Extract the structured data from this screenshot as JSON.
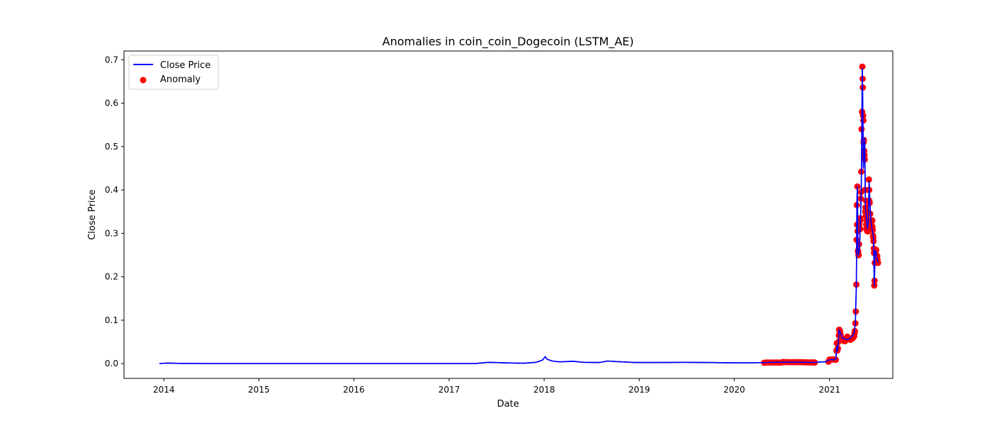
{
  "chart_data": {
    "type": "line",
    "title": "Anomalies in coin_coin_Dogecoin (LSTM_AE)",
    "xlabel": "Date",
    "ylabel": "Close Price",
    "xlim": [
      "2013-08-01",
      "2021-09-01"
    ],
    "ylim": [
      -0.034,
      0.72
    ],
    "x_ticks": [
      "2014",
      "2015",
      "2016",
      "2017",
      "2018",
      "2019",
      "2020",
      "2021"
    ],
    "y_ticks": [
      "0.0",
      "0.1",
      "0.2",
      "0.3",
      "0.4",
      "0.5",
      "0.6",
      "0.7"
    ],
    "legend": {
      "placement": "upper-left",
      "entries": [
        "Close Price",
        "Anomaly"
      ]
    },
    "grid": false,
    "colors": {
      "line": "#0000ff",
      "anomaly": "#ff0000"
    },
    "series": [
      {
        "name": "Close Price",
        "style": "line",
        "points": [
          [
            "2013-12-15",
            0.0003
          ],
          [
            "2014-01-15",
            0.0012
          ],
          [
            "2014-03-01",
            0.0006
          ],
          [
            "2014-06-01",
            0.0003
          ],
          [
            "2015-01-01",
            0.0002
          ],
          [
            "2016-01-01",
            0.0002
          ],
          [
            "2017-01-01",
            0.0002
          ],
          [
            "2017-04-15",
            0.0005
          ],
          [
            "2017-06-01",
            0.003
          ],
          [
            "2017-08-15",
            0.0015
          ],
          [
            "2017-10-15",
            0.001
          ],
          [
            "2017-12-01",
            0.003
          ],
          [
            "2017-12-25",
            0.008
          ],
          [
            "2018-01-05",
            0.016
          ],
          [
            "2018-01-12",
            0.01
          ],
          [
            "2018-02-01",
            0.006
          ],
          [
            "2018-03-01",
            0.004
          ],
          [
            "2018-04-20",
            0.0055
          ],
          [
            "2018-06-01",
            0.003
          ],
          [
            "2018-08-01",
            0.0025
          ],
          [
            "2018-09-01",
            0.006
          ],
          [
            "2018-10-15",
            0.0045
          ],
          [
            "2018-12-15",
            0.0025
          ],
          [
            "2019-04-01",
            0.0025
          ],
          [
            "2019-06-20",
            0.003
          ],
          [
            "2019-09-01",
            0.0025
          ],
          [
            "2019-12-01",
            0.002
          ],
          [
            "2020-03-10",
            0.0019
          ],
          [
            "2020-05-01",
            0.0025
          ],
          [
            "2020-07-10",
            0.0035
          ],
          [
            "2020-09-01",
            0.0033
          ],
          [
            "2020-11-01",
            0.0027
          ],
          [
            "2020-12-20",
            0.0045
          ],
          [
            "2021-01-01",
            0.0093
          ],
          [
            "2021-01-25",
            0.009
          ],
          [
            "2021-01-29",
            0.04
          ],
          [
            "2021-02-01",
            0.03
          ],
          [
            "2021-02-07",
            0.078
          ],
          [
            "2021-02-20",
            0.058
          ],
          [
            "2021-03-10",
            0.055
          ],
          [
            "2021-03-25",
            0.06
          ],
          [
            "2021-04-05",
            0.07
          ],
          [
            "2021-04-10",
            0.093
          ],
          [
            "2021-04-14",
            0.182
          ],
          [
            "2021-04-16",
            0.365
          ],
          [
            "2021-04-18",
            0.408
          ],
          [
            "2021-04-20",
            0.26
          ],
          [
            "2021-04-23",
            0.25
          ],
          [
            "2021-04-26",
            0.27
          ],
          [
            "2021-04-30",
            0.33
          ],
          [
            "2021-05-03",
            0.395
          ],
          [
            "2021-05-05",
            0.54
          ],
          [
            "2021-05-07",
            0.68
          ],
          [
            "2021-05-09",
            0.58
          ],
          [
            "2021-05-11",
            0.45
          ],
          [
            "2021-05-13",
            0.48
          ],
          [
            "2021-05-16",
            0.52
          ],
          [
            "2021-05-19",
            0.36
          ],
          [
            "2021-05-23",
            0.33
          ],
          [
            "2021-05-26",
            0.31
          ],
          [
            "2021-05-30",
            0.33
          ],
          [
            "2021-06-02",
            0.42
          ],
          [
            "2021-06-05",
            0.37
          ],
          [
            "2021-06-09",
            0.33
          ],
          [
            "2021-06-13",
            0.31
          ],
          [
            "2021-06-16",
            0.3
          ],
          [
            "2021-06-19",
            0.29
          ],
          [
            "2021-06-22",
            0.18
          ],
          [
            "2021-06-25",
            0.26
          ],
          [
            "2021-06-28",
            0.26
          ],
          [
            "2021-07-01",
            0.245
          ],
          [
            "2021-07-04",
            0.24
          ],
          [
            "2021-07-06",
            0.232
          ]
        ]
      },
      {
        "name": "Anomaly",
        "style": "scatter",
        "points": [
          [
            "2020-04-25",
            0.002
          ],
          [
            "2020-05-05",
            0.0025
          ],
          [
            "2020-05-15",
            0.0025
          ],
          [
            "2020-05-25",
            0.0026
          ],
          [
            "2020-06-05",
            0.0025
          ],
          [
            "2020-06-15",
            0.0025
          ],
          [
            "2020-06-25",
            0.0024
          ],
          [
            "2020-07-05",
            0.0035
          ],
          [
            "2020-07-10",
            0.0035
          ],
          [
            "2020-07-20",
            0.0035
          ],
          [
            "2020-07-30",
            0.0033
          ],
          [
            "2020-08-10",
            0.0034
          ],
          [
            "2020-08-20",
            0.0034
          ],
          [
            "2020-08-30",
            0.0035
          ],
          [
            "2020-09-10",
            0.0033
          ],
          [
            "2020-09-20",
            0.0032
          ],
          [
            "2020-09-30",
            0.0031
          ],
          [
            "2020-10-10",
            0.0028
          ],
          [
            "2020-10-20",
            0.0027
          ],
          [
            "2020-10-28",
            0.0027
          ],
          [
            "2020-11-03",
            0.0026
          ],
          [
            "2020-11-05",
            0.0025
          ],
          [
            "2020-12-28",
            0.0045
          ],
          [
            "2021-01-01",
            0.0093
          ],
          [
            "2021-01-05",
            0.009
          ],
          [
            "2021-01-10",
            0.0095
          ],
          [
            "2021-01-15",
            0.0095
          ],
          [
            "2021-01-20",
            0.0093
          ],
          [
            "2021-01-25",
            0.009
          ],
          [
            "2021-01-28",
            0.03
          ],
          [
            "2021-01-29",
            0.047
          ],
          [
            "2021-01-31",
            0.03
          ],
          [
            "2021-02-02",
            0.035
          ],
          [
            "2021-02-04",
            0.05
          ],
          [
            "2021-02-06",
            0.065
          ],
          [
            "2021-02-07",
            0.078
          ],
          [
            "2021-02-08",
            0.078
          ],
          [
            "2021-02-10",
            0.075
          ],
          [
            "2021-02-12",
            0.068
          ],
          [
            "2021-02-15",
            0.06
          ],
          [
            "2021-02-18",
            0.055
          ],
          [
            "2021-02-22",
            0.055
          ],
          [
            "2021-02-26",
            0.052
          ],
          [
            "2021-03-02",
            0.052
          ],
          [
            "2021-03-06",
            0.058
          ],
          [
            "2021-03-10",
            0.062
          ],
          [
            "2021-03-14",
            0.06
          ],
          [
            "2021-03-18",
            0.058
          ],
          [
            "2021-03-22",
            0.055
          ],
          [
            "2021-03-26",
            0.057
          ],
          [
            "2021-03-30",
            0.058
          ],
          [
            "2021-04-02",
            0.06
          ],
          [
            "2021-04-05",
            0.063
          ],
          [
            "2021-04-07",
            0.07
          ],
          [
            "2021-04-08",
            0.075
          ],
          [
            "2021-04-10",
            0.093
          ],
          [
            "2021-04-12",
            0.12
          ],
          [
            "2021-04-14",
            0.182
          ],
          [
            "2021-04-15",
            0.285
          ],
          [
            "2021-04-16",
            0.365
          ],
          [
            "2021-04-17",
            0.32
          ],
          [
            "2021-04-18",
            0.408
          ],
          [
            "2021-04-19",
            0.305
          ],
          [
            "2021-04-20",
            0.26
          ],
          [
            "2021-04-21",
            0.258
          ],
          [
            "2021-04-22",
            0.25
          ],
          [
            "2021-04-23",
            0.25
          ],
          [
            "2021-04-24",
            0.275
          ],
          [
            "2021-04-25",
            0.32
          ],
          [
            "2021-04-27",
            0.31
          ],
          [
            "2021-04-28",
            0.335
          ],
          [
            "2021-04-29",
            0.31
          ],
          [
            "2021-04-30",
            0.33
          ],
          [
            "2021-05-01",
            0.38
          ],
          [
            "2021-05-02",
            0.395
          ],
          [
            "2021-05-03",
            0.442
          ],
          [
            "2021-05-04",
            0.54
          ],
          [
            "2021-05-06",
            0.58
          ],
          [
            "2021-05-07",
            0.684
          ],
          [
            "2021-05-08",
            0.656
          ],
          [
            "2021-05-09",
            0.636
          ],
          [
            "2021-05-10",
            0.571
          ],
          [
            "2021-05-11",
            0.56
          ],
          [
            "2021-05-12",
            0.51
          ],
          [
            "2021-05-13",
            0.515
          ],
          [
            "2021-05-14",
            0.49
          ],
          [
            "2021-05-15",
            0.48
          ],
          [
            "2021-05-16",
            0.47
          ],
          [
            "2021-05-17",
            0.4
          ],
          [
            "2021-05-18",
            0.35
          ],
          [
            "2021-05-19",
            0.36
          ],
          [
            "2021-05-20",
            0.34
          ],
          [
            "2021-05-21",
            0.375
          ],
          [
            "2021-05-22",
            0.32
          ],
          [
            "2021-05-23",
            0.31
          ],
          [
            "2021-05-24",
            0.33
          ],
          [
            "2021-05-25",
            0.35
          ],
          [
            "2021-05-26",
            0.305
          ],
          [
            "2021-05-27",
            0.32
          ],
          [
            "2021-05-28",
            0.31
          ],
          [
            "2021-05-29",
            0.305
          ],
          [
            "2021-05-30",
            0.33
          ],
          [
            "2021-05-31",
            0.4
          ],
          [
            "2021-06-01",
            0.424
          ],
          [
            "2021-06-02",
            0.4
          ],
          [
            "2021-06-03",
            0.375
          ],
          [
            "2021-06-04",
            0.37
          ],
          [
            "2021-06-06",
            0.345
          ],
          [
            "2021-06-08",
            0.33
          ],
          [
            "2021-06-10",
            0.32
          ],
          [
            "2021-06-12",
            0.328
          ],
          [
            "2021-06-14",
            0.33
          ],
          [
            "2021-06-15",
            0.315
          ],
          [
            "2021-06-16",
            0.308
          ],
          [
            "2021-06-17",
            0.295
          ],
          [
            "2021-06-18",
            0.29
          ],
          [
            "2021-06-19",
            0.282
          ],
          [
            "2021-06-20",
            0.265
          ],
          [
            "2021-06-21",
            0.255
          ],
          [
            "2021-06-22",
            0.18
          ],
          [
            "2021-06-23",
            0.191
          ],
          [
            "2021-06-24",
            0.232
          ],
          [
            "2021-06-25",
            0.262
          ],
          [
            "2021-06-26",
            0.255
          ],
          [
            "2021-06-27",
            0.258
          ],
          [
            "2021-06-29",
            0.262
          ],
          [
            "2021-07-01",
            0.245
          ],
          [
            "2021-07-03",
            0.248
          ],
          [
            "2021-07-04",
            0.24
          ],
          [
            "2021-07-06",
            0.232
          ]
        ]
      }
    ]
  }
}
